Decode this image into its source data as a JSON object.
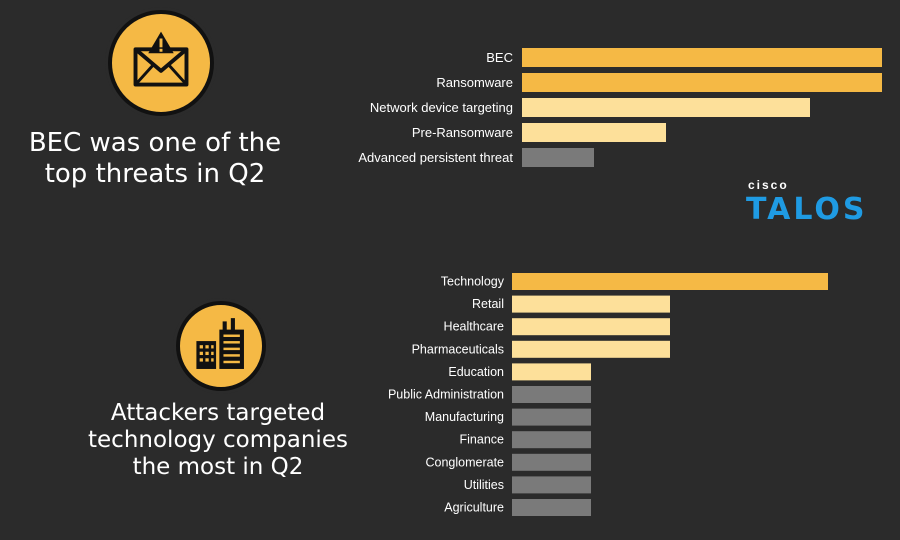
{
  "headlines": {
    "top": "BEC was one of the\ntop threats in Q2",
    "bottom": "Attackers targeted\ntechnology companies\nthe most in Q2"
  },
  "logo": {
    "small": "cisco",
    "big": "TALOS"
  },
  "colors": {
    "background": "#2b2b2b",
    "bar_dark_orange": "#f5b945",
    "bar_light_orange": "#fde09a",
    "bar_gray": "#7a7a7a",
    "logo_blue": "#1f9be3"
  },
  "icons": {
    "top": "warning-envelope-icon",
    "bottom": "factory-buildings-icon"
  },
  "chart_data": [
    {
      "type": "bar",
      "orientation": "horizontal",
      "categories": [
        "BEC",
        "Ransomware",
        "Network device targeting",
        "Pre-Ransomware",
        "Advanced persistent threat"
      ],
      "values": [
        100,
        100,
        80,
        40,
        20
      ],
      "colors": [
        "#f5b945",
        "#f5b945",
        "#fde09a",
        "#fde09a",
        "#7a7a7a"
      ],
      "title": "",
      "xlabel": "",
      "ylabel": "",
      "xlim": [
        0,
        100
      ],
      "grid": false,
      "legend": "none"
    },
    {
      "type": "bar",
      "orientation": "horizontal",
      "categories": [
        "Technology",
        "Retail",
        "Healthcare",
        "Pharmaceuticals",
        "Education",
        "Public Administration",
        "Manufacturing",
        "Finance",
        "Conglomerate",
        "Utilities",
        "Agriculture"
      ],
      "values": [
        100,
        50,
        50,
        50,
        25,
        25,
        25,
        25,
        25,
        25,
        25
      ],
      "colors": [
        "#f5b945",
        "#fde09a",
        "#fde09a",
        "#fde09a",
        "#fde09a",
        "#7a7a7a",
        "#7a7a7a",
        "#7a7a7a",
        "#7a7a7a",
        "#7a7a7a",
        "#7a7a7a"
      ],
      "title": "",
      "xlabel": "",
      "ylabel": "",
      "xlim": [
        0,
        100
      ],
      "grid": false,
      "legend": "none"
    }
  ]
}
